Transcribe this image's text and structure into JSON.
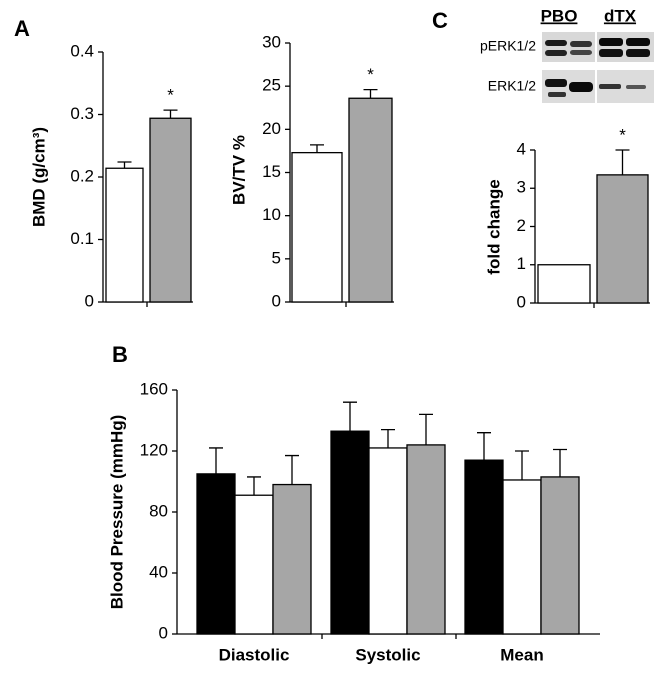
{
  "chart_data": [
    {
      "type": "bar",
      "panel_label": "A",
      "ylabel": "BMD (g/cm³)",
      "ylim": [
        0,
        0.4
      ],
      "yticks": [
        0,
        0.1,
        0.2,
        0.3,
        0.4
      ],
      "values": [
        0.214,
        0.294
      ],
      "errors": [
        0.01,
        0.013
      ],
      "colors": [
        "#ffffff",
        "#a6a6a6"
      ],
      "annotations": [
        null,
        "*"
      ]
    },
    {
      "type": "bar",
      "ylabel": "BV/TV %",
      "ylim": [
        0,
        30
      ],
      "yticks": [
        0,
        5,
        10,
        15,
        20,
        25,
        30
      ],
      "values": [
        17.3,
        23.6
      ],
      "errors": [
        0.9,
        1.0
      ],
      "colors": [
        "#ffffff",
        "#a6a6a6"
      ],
      "annotations": [
        null,
        "*"
      ]
    },
    {
      "type": "bar",
      "panel_label": "C",
      "ylabel": "fold change",
      "ylim": [
        0,
        4
      ],
      "yticks": [
        0,
        1,
        2,
        3,
        4
      ],
      "values": [
        1.0,
        3.35
      ],
      "errors": [
        0,
        0.65
      ],
      "colors": [
        "#ffffff",
        "#a6a6a6"
      ],
      "annotations": [
        null,
        "*"
      ],
      "blot": {
        "columns": [
          "PBO",
          "dTX"
        ],
        "rows": [
          "pERK1/2",
          "ERK1/2"
        ]
      }
    },
    {
      "type": "grouped-bar",
      "panel_label": "B",
      "ylabel": "Blood Pressure (mmHg)",
      "ylim": [
        0,
        160
      ],
      "yticks": [
        0,
        40,
        80,
        120,
        160
      ],
      "categories": [
        "Diastolic",
        "Systolic",
        "Mean"
      ],
      "series": [
        {
          "color": "#000000",
          "values": [
            105,
            133,
            114
          ],
          "errors": [
            17,
            19,
            18
          ]
        },
        {
          "color": "#ffffff",
          "values": [
            91,
            122,
            101
          ],
          "errors": [
            12,
            12,
            19
          ]
        },
        {
          "color": "#a6a6a6",
          "values": [
            98,
            124,
            103
          ],
          "errors": [
            19,
            20,
            18
          ]
        }
      ]
    }
  ]
}
